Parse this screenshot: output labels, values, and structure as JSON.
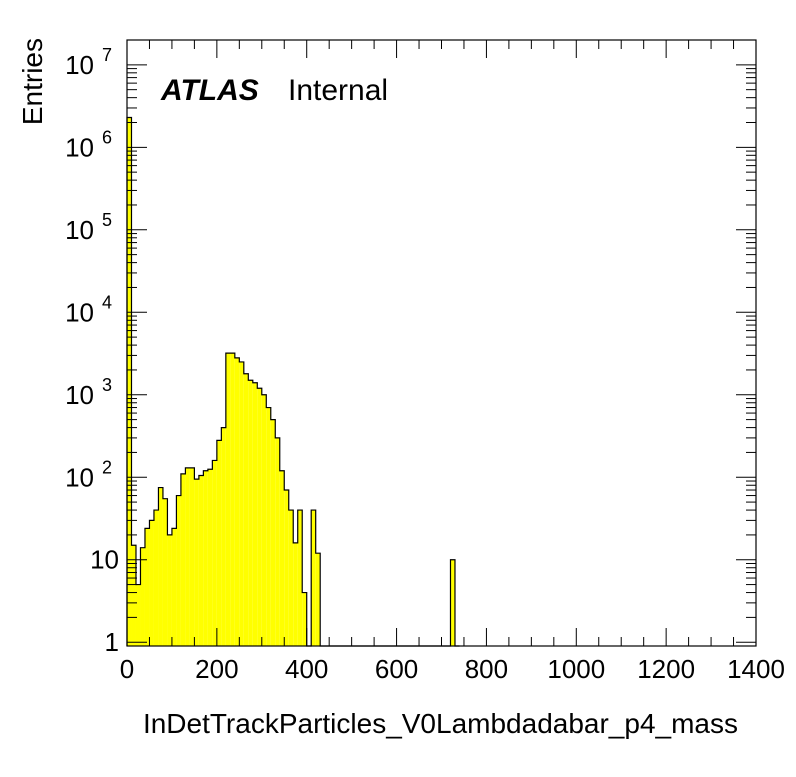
{
  "chart_data": {
    "type": "bar",
    "style": "histogram-step-filled",
    "fill_color": "#ffff00",
    "line_color": "#000000",
    "xlabel": "InDetTrackParticles_V0Lambdadabar_p4_mass",
    "ylabel": "Entries",
    "annotation": {
      "experiment": "ATLAS",
      "status": "Internal"
    },
    "xlim": [
      0,
      1400
    ],
    "ylim": [
      0.9,
      20000000
    ],
    "y_scale": "log",
    "bin_width": 10,
    "x_ticks": [
      {
        "value": 0,
        "label": "0"
      },
      {
        "value": 200,
        "label": "200"
      },
      {
        "value": 400,
        "label": "400"
      },
      {
        "value": 600,
        "label": "600"
      },
      {
        "value": 800,
        "label": "800"
      },
      {
        "value": 1000,
        "label": "1000"
      },
      {
        "value": 1200,
        "label": "1200"
      },
      {
        "value": 1400,
        "label": "1400"
      }
    ],
    "y_ticks": [
      {
        "value": 1,
        "base": "1",
        "exp": ""
      },
      {
        "value": 10,
        "base": "10",
        "exp": ""
      },
      {
        "value": 100,
        "base": "10",
        "exp": "2"
      },
      {
        "value": 1000,
        "base": "10",
        "exp": "3"
      },
      {
        "value": 10000,
        "base": "10",
        "exp": "4"
      },
      {
        "value": 100000,
        "base": "10",
        "exp": "5"
      },
      {
        "value": 1000000,
        "base": "10",
        "exp": "6"
      },
      {
        "value": 10000000,
        "base": "10",
        "exp": "7"
      }
    ],
    "bins_x_low": [
      0,
      10,
      20,
      30,
      40,
      50,
      60,
      70,
      80,
      90,
      100,
      110,
      120,
      130,
      140,
      150,
      160,
      170,
      180,
      190,
      200,
      210,
      220,
      230,
      240,
      250,
      260,
      270,
      280,
      290,
      300,
      310,
      320,
      330,
      340,
      350,
      360,
      370,
      380,
      390,
      400,
      410,
      420,
      430,
      440,
      450,
      460,
      470,
      480,
      490,
      500,
      510,
      520,
      530,
      540,
      550,
      560,
      570,
      580,
      590,
      600,
      610,
      620,
      630,
      640,
      650,
      660,
      670,
      680,
      690,
      700,
      710,
      720,
      730
    ],
    "values": [
      2300000,
      15,
      5,
      14,
      24,
      30,
      40,
      75,
      55,
      20,
      24,
      60,
      110,
      130,
      130,
      95,
      105,
      120,
      125,
      160,
      280,
      400,
      3200,
      3200,
      2800,
      2500,
      1800,
      1500,
      1400,
      1200,
      1000,
      700,
      500,
      300,
      120,
      70,
      40,
      16,
      40,
      4,
      0,
      40,
      12,
      0,
      0,
      0,
      0,
      0,
      0,
      0,
      0,
      0,
      0,
      0,
      0,
      0,
      0,
      0,
      0,
      0,
      0,
      0,
      0,
      0,
      0,
      0,
      0,
      0,
      0,
      0,
      0,
      0,
      10,
      0
    ],
    "grid": false
  }
}
